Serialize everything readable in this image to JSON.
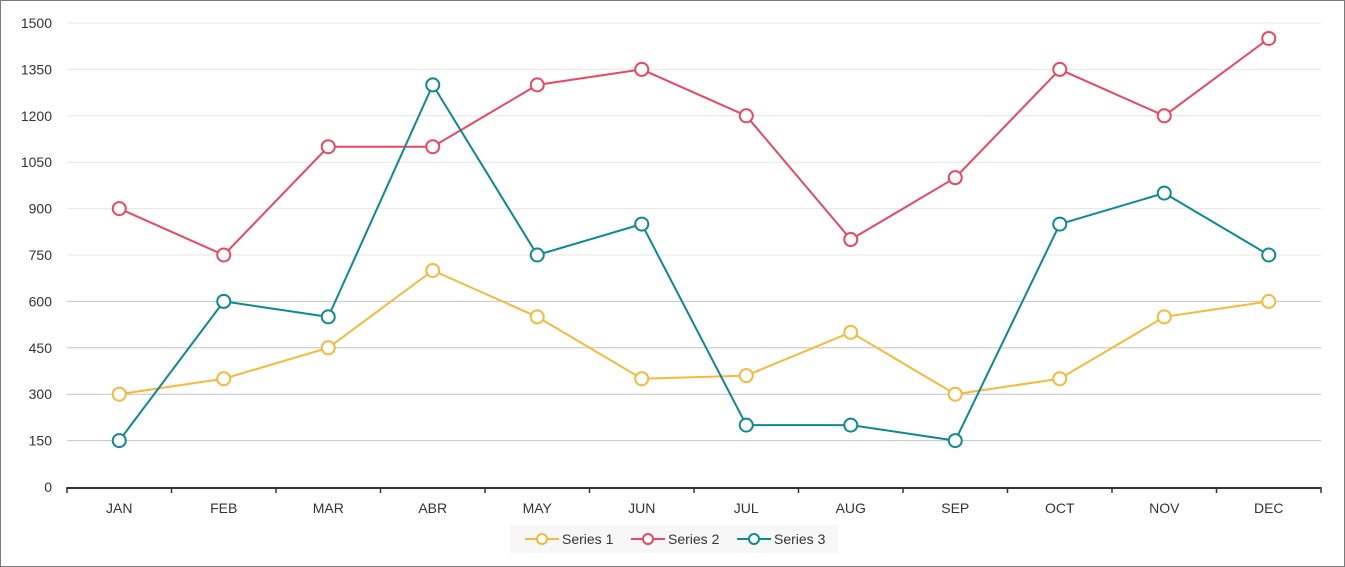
{
  "chart_data": {
    "type": "line",
    "categories": [
      "JAN",
      "FEB",
      "MAR",
      "ABR",
      "MAY",
      "JUN",
      "JUL",
      "AUG",
      "SEP",
      "OCT",
      "NOV",
      "DEC"
    ],
    "series": [
      {
        "name": "Series 1",
        "color": "#f6b93b",
        "values": [
          300,
          350,
          450,
          700,
          550,
          350,
          360,
          500,
          300,
          350,
          550,
          600
        ]
      },
      {
        "name": "Series 2",
        "color": "#ea4662",
        "values": [
          900,
          750,
          1100,
          1100,
          1300,
          1350,
          1200,
          800,
          1000,
          1350,
          1200,
          1450
        ]
      },
      {
        "name": "Series 3",
        "color": "#0c8a8f",
        "values": [
          150,
          600,
          550,
          1300,
          750,
          850,
          200,
          200,
          150,
          850,
          950,
          750
        ]
      }
    ],
    "ylim": [
      0,
      1500
    ],
    "yticks": [
      0,
      150,
      300,
      450,
      600,
      750,
      900,
      1050,
      1200,
      1350,
      1500
    ],
    "grid": true,
    "legend": "bottom-center",
    "title": "",
    "xlabel": "",
    "ylabel": ""
  }
}
